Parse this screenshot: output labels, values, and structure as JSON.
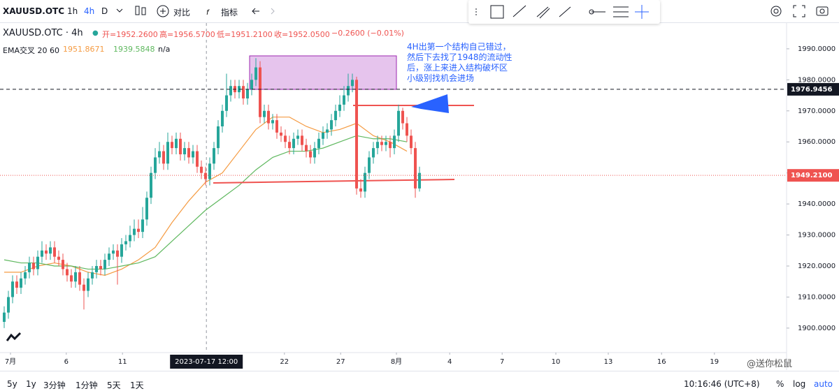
{
  "toolbar": {
    "symbol": "XAUUSD.OTC",
    "intervals": [
      "1h",
      "4h",
      "D"
    ],
    "compare": "对比",
    "indicators": "指标"
  },
  "legend": {
    "title": "XAUUSD.OTC · 4h",
    "ohlc": [
      "开=1952.2600",
      "高=1956.5700",
      "低=1951.2100",
      "收=1952.0500",
      "−0.2600 (−0.01%)"
    ],
    "ema_label": "EMA交叉 20 60",
    "ema_values": [
      "1951.8671",
      "1939.5848",
      "n/a"
    ]
  },
  "annotation": [
    "4H出第一个结构自己错过，",
    "然后下去找了1948的流动性",
    "后，涨上来进入结构破坏区",
    "小级别找机会进场"
  ],
  "watermark": "@送你松鼠",
  "bottom_bar": {
    "ranges": [
      "5y",
      "1y",
      "3分钟",
      "1分钟",
      "5天",
      "1天"
    ],
    "clock": "10:16:46 (UTC+8)",
    "options": [
      "%",
      "log",
      "auto"
    ]
  },
  "chart_data": {
    "type": "candlestick",
    "up_color": "#26a69a",
    "down_color": "#ef5350",
    "open": [
      1902,
      1905,
      1910,
      1915,
      1913,
      1916,
      1918,
      1921,
      1919,
      1923,
      1925,
      1924,
      1926,
      1923,
      1922,
      1919,
      1917,
      1915,
      1918,
      1914,
      1912,
      1916,
      1918,
      1920,
      1919,
      1922,
      1924,
      1925,
      1923,
      1927,
      1928,
      1930,
      1932,
      1931,
      1935,
      1942,
      1950,
      1955,
      1957,
      1953,
      1960,
      1958,
      1961,
      1956,
      1958,
      1955,
      1957,
      1952,
      1950,
      1948,
      1953,
      1958,
      1965,
      1970,
      1975,
      1978,
      1976,
      1978,
      1974,
      1977,
      1980,
      1984,
      1968,
      1970,
      1966,
      1967,
      1963,
      1962,
      1960,
      1958,
      1961,
      1962,
      1959,
      1957,
      1955,
      1958,
      1961,
      1963,
      1964,
      1967,
      1970,
      1972,
      1975,
      1978,
      1980,
      1945,
      1944,
      1950,
      1955,
      1958,
      1960,
      1959,
      1960,
      1958,
      1962,
      1970,
      1966,
      1962,
      1958,
      1945
    ],
    "high": [
      1907,
      1912,
      1917,
      1917,
      1918,
      1920,
      1923,
      1923,
      1925,
      1928,
      1927,
      1928,
      1928,
      1925,
      1924,
      1921,
      1919,
      1920,
      1920,
      1916,
      1918,
      1920,
      1922,
      1922,
      1924,
      1926,
      1927,
      1927,
      1929,
      1930,
      1933,
      1935,
      1935,
      1939,
      1944,
      1952,
      1958,
      1960,
      1959,
      1963,
      1962,
      1963,
      1963,
      1960,
      1960,
      1959,
      1959,
      1954,
      1952,
      1955,
      1960,
      1967,
      1972,
      1982,
      1980,
      1980,
      1980,
      1980,
      1979,
      1982,
      1987,
      1986,
      1972,
      1972,
      1969,
      1969,
      1965,
      1964,
      1962,
      1963,
      1964,
      1964,
      1961,
      1959,
      1960,
      1963,
      1965,
      1966,
      1969,
      1972,
      1975,
      1978,
      1982,
      1982,
      1981,
      1948,
      1952,
      1957,
      1960,
      1962,
      1962,
      1962,
      1962,
      1964,
      1972,
      1971,
      1968,
      1964,
      1960,
      1952
    ],
    "low": [
      1900,
      1903,
      1908,
      1911,
      1911,
      1914,
      1916,
      1917,
      1917,
      1921,
      1922,
      1922,
      1921,
      1920,
      1917,
      1915,
      1913,
      1913,
      1912,
      1906,
      1910,
      1914,
      1916,
      1917,
      1917,
      1920,
      1922,
      1914,
      1921,
      1925,
      1926,
      1928,
      1929,
      1929,
      1933,
      1940,
      1948,
      1953,
      1951,
      1951,
      1956,
      1956,
      1954,
      1954,
      1953,
      1953,
      1950,
      1948,
      1946,
      1946,
      1951,
      1956,
      1963,
      1968,
      1973,
      1974,
      1974,
      1972,
      1972,
      1975,
      1978,
      1966,
      1966,
      1964,
      1964,
      1961,
      1960,
      1958,
      1956,
      1956,
      1959,
      1957,
      1955,
      1953,
      1953,
      1956,
      1959,
      1961,
      1962,
      1965,
      1968,
      1970,
      1973,
      1976,
      1943,
      1942,
      1942,
      1948,
      1953,
      1956,
      1957,
      1957,
      1955,
      1956,
      1960,
      1964,
      1960,
      1956,
      1942,
      1944
    ],
    "close": [
      1905,
      1910,
      1915,
      1913,
      1916,
      1918,
      1921,
      1919,
      1923,
      1925,
      1924,
      1926,
      1923,
      1922,
      1919,
      1917,
      1915,
      1918,
      1914,
      1912,
      1916,
      1918,
      1920,
      1919,
      1922,
      1924,
      1925,
      1923,
      1927,
      1928,
      1930,
      1932,
      1931,
      1935,
      1942,
      1950,
      1955,
      1957,
      1953,
      1960,
      1958,
      1961,
      1956,
      1958,
      1955,
      1957,
      1952,
      1950,
      1948,
      1953,
      1958,
      1965,
      1970,
      1975,
      1978,
      1976,
      1978,
      1974,
      1977,
      1980,
      1984,
      1968,
      1970,
      1966,
      1967,
      1963,
      1962,
      1960,
      1958,
      1961,
      1962,
      1959,
      1957,
      1955,
      1958,
      1961,
      1963,
      1964,
      1967,
      1970,
      1972,
      1975,
      1978,
      1980,
      1945,
      1944,
      1950,
      1955,
      1958,
      1960,
      1959,
      1960,
      1958,
      1962,
      1970,
      1966,
      1962,
      1958,
      1945,
      1950
    ],
    "ema": [
      {
        "color": "#f59b42",
        "x": [
          0,
          4,
          8,
          12,
          16,
          20,
          24,
          28,
          32,
          36,
          40,
          44,
          48,
          52,
          56,
          60,
          64,
          68,
          72,
          76,
          80,
          84,
          88,
          92,
          96
        ],
        "values": [
          1918,
          1918,
          1920,
          1921,
          1920,
          1918,
          1917,
          1919,
          1922,
          1926,
          1934,
          1941,
          1947,
          1950,
          1957,
          1964,
          1968,
          1968,
          1965,
          1963,
          1964,
          1966,
          1962,
          1960,
          1957
        ]
      },
      {
        "color": "#5fb85f",
        "x": [
          0,
          4,
          8,
          12,
          16,
          20,
          24,
          28,
          32,
          36,
          40,
          44,
          48,
          52,
          56,
          60,
          64,
          68,
          72,
          76,
          80,
          84,
          88,
          92,
          96
        ],
        "values": [
          1922,
          1921,
          1921,
          1920,
          1920,
          1919,
          1919,
          1920,
          1921,
          1923,
          1928,
          1933,
          1938,
          1942,
          1946,
          1951,
          1955,
          1957,
          1957,
          1958,
          1960,
          1962,
          1961,
          1961,
          1960
        ]
      }
    ],
    "xlim": [
      -1,
      186.5
    ],
    "xticks": [
      {
        "value": 1.5,
        "label": "7月"
      },
      {
        "value": 14.8,
        "label": "6"
      },
      {
        "value": 28.2,
        "label": "11"
      },
      {
        "value": 66.8,
        "label": "22"
      },
      {
        "value": 80.2,
        "label": "27"
      },
      {
        "value": 93.5,
        "label": "8月"
      },
      {
        "value": 106.2,
        "label": "4"
      },
      {
        "value": 118.7,
        "label": "7"
      },
      {
        "value": 131.5,
        "label": "10"
      },
      {
        "value": 144,
        "label": "13"
      },
      {
        "value": 156.7,
        "label": "16"
      },
      {
        "value": 169.3,
        "label": "19"
      }
    ],
    "crosshair_x": {
      "value": 48.2,
      "label": "2023-07-17 12:00"
    },
    "ylim": [
      1892.1,
      1998.3
    ],
    "yticks": [
      {
        "value": 1900,
        "label": "1900.0000"
      },
      {
        "value": 1910,
        "label": "1910.0000"
      },
      {
        "value": 1920,
        "label": "1920.0000"
      },
      {
        "value": 1930,
        "label": "1930.0000"
      },
      {
        "value": 1940,
        "label": "1940.0000"
      },
      {
        "value": 1950,
        "label": "1950.0000"
      },
      {
        "value": 1960,
        "label": "1960.0000"
      },
      {
        "value": 1970,
        "label": "1970.0000"
      },
      {
        "value": 1980,
        "label": "1980.0000"
      },
      {
        "value": 1990,
        "label": "1990.0000"
      }
    ],
    "price_lines": [
      {
        "value": 1976.9456,
        "label": "1976.9456",
        "color": "#131722",
        "style": "dashed"
      },
      {
        "value": 1949.21,
        "label": "1949.2100",
        "color": "#ef5350",
        "style": "dotted"
      }
    ]
  }
}
